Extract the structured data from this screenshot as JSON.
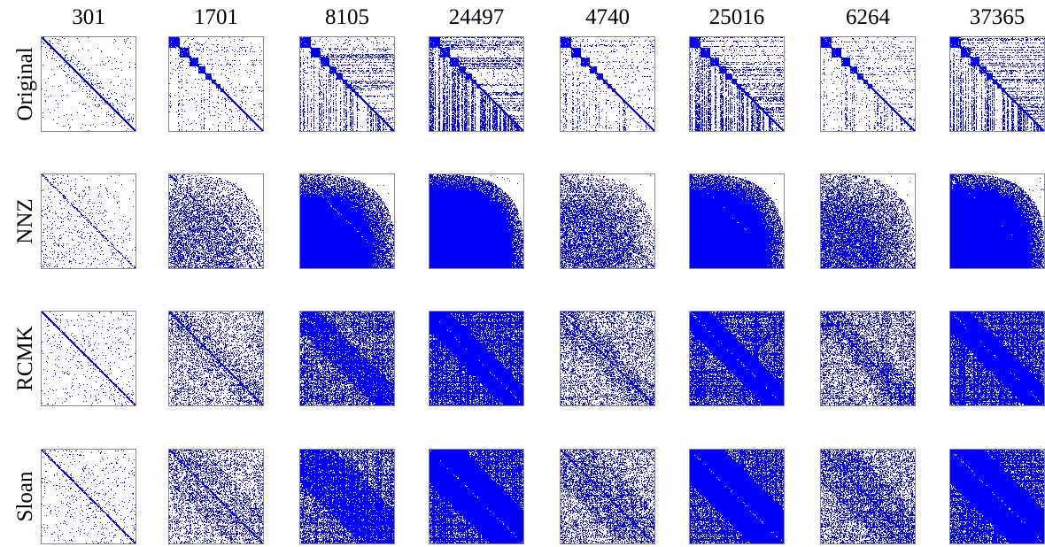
{
  "columns": [
    "301",
    "1701",
    "8105",
    "24497",
    "4740",
    "25016",
    "6264",
    "37365"
  ],
  "rows": [
    "Original",
    "NNZ",
    "RCMK",
    "Sloan"
  ]
}
